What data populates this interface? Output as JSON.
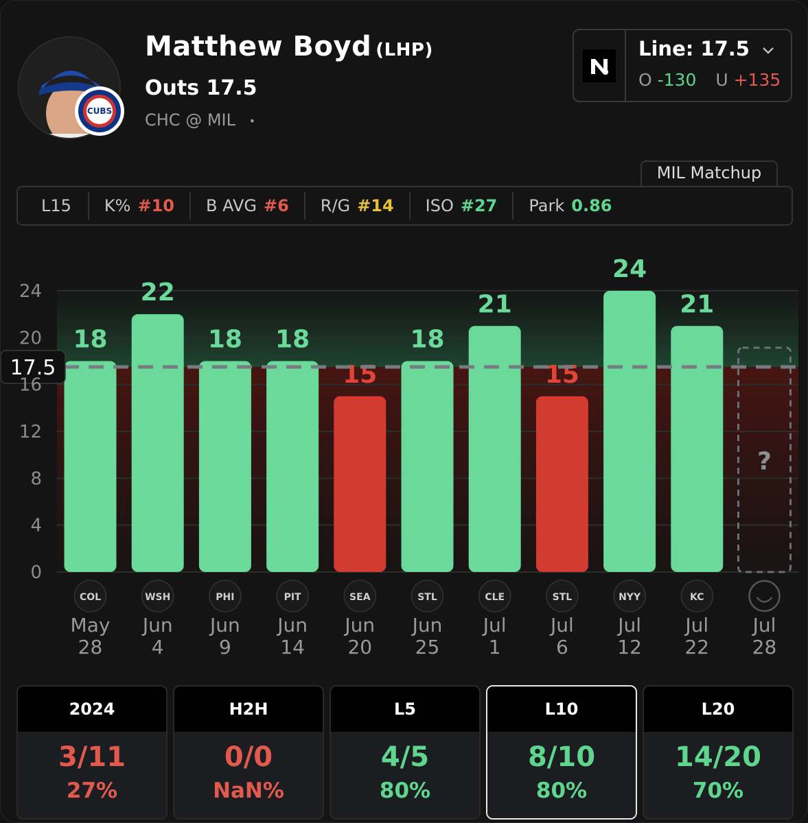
{
  "player": {
    "name": "Matthew Boyd",
    "hand": "(LHP)",
    "prop": "Outs 17.5",
    "matchup": "CHC @ MIL",
    "matchup_dot": "•",
    "team_logo_text": "CUBS"
  },
  "line": {
    "label": "Line: 17.5",
    "over_label": "O",
    "over_odds": "-130",
    "under_label": "U",
    "under_odds": "+135",
    "book_logo_text": "N"
  },
  "matchup_tab": "MIL Matchup",
  "stats": {
    "window": "L15",
    "items": [
      {
        "label": "K%",
        "value": "#10",
        "color": "#e25a4e"
      },
      {
        "label": "B AVG",
        "value": "#6",
        "color": "#e25a4e"
      },
      {
        "label": "R/G",
        "value": "#14",
        "color": "#e8c13b"
      },
      {
        "label": "ISO",
        "value": "#27",
        "color": "#5fd68e"
      },
      {
        "label": "Park",
        "value": "0.86",
        "color": "#5fd68e"
      }
    ]
  },
  "chart_data": {
    "type": "bar",
    "categories": [
      "May 28",
      "Jun 4",
      "Jun 9",
      "Jun 14",
      "Jun 20",
      "Jun 25",
      "Jul 1",
      "Jul 6",
      "Jul 12",
      "Jul 22",
      "Jul 28"
    ],
    "x_month": [
      "May",
      "Jun",
      "Jun",
      "Jun",
      "Jun",
      "Jun",
      "Jul",
      "Jul",
      "Jul",
      "Jul",
      "Jul"
    ],
    "x_day": [
      "28",
      "4",
      "9",
      "14",
      "20",
      "25",
      "1",
      "6",
      "12",
      "22",
      "28"
    ],
    "opponents": [
      "COL",
      "WSH",
      "PHI",
      "PIT",
      "SEA",
      "STL",
      "CLE",
      "STL",
      "NYY",
      "KC",
      ""
    ],
    "values": [
      18,
      22,
      18,
      18,
      15,
      18,
      21,
      15,
      24,
      21,
      null
    ],
    "pending_label": "?",
    "line": 17.5,
    "line_label": "17.5",
    "yticks": [
      0,
      4,
      8,
      12,
      16,
      20,
      24
    ],
    "ylim": [
      0,
      24
    ],
    "grid": true,
    "colors": {
      "over": "#6ad99a",
      "under": "#d33b31",
      "over_text": "#6ad99a",
      "under_text": "#e0453a"
    }
  },
  "splits": [
    {
      "label": "2024",
      "fraction": "3/11",
      "percent": "27%",
      "color": "#e25a4e",
      "active": false
    },
    {
      "label": "H2H",
      "fraction": "0/0",
      "percent": "NaN%",
      "color": "#e25a4e",
      "active": false
    },
    {
      "label": "L5",
      "fraction": "4/5",
      "percent": "80%",
      "color": "#5fd68e",
      "active": false
    },
    {
      "label": "L10",
      "fraction": "8/10",
      "percent": "80%",
      "color": "#5fd68e",
      "active": true
    },
    {
      "label": "L20",
      "fraction": "14/20",
      "percent": "70%",
      "color": "#5fd68e",
      "active": false
    }
  ]
}
